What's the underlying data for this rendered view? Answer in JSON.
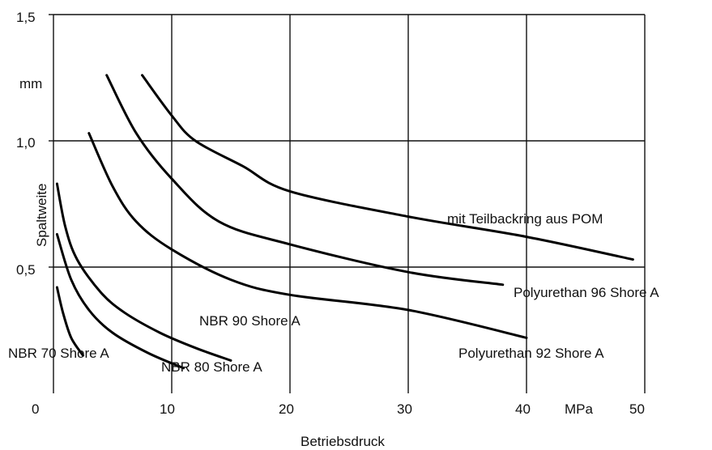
{
  "chart_data": {
    "type": "line",
    "xlabel": "Betriebsdruck",
    "ylabel": "Spaltweite",
    "x_unit": "MPa",
    "y_unit": "mm",
    "xlim": [
      0,
      50
    ],
    "ylim": [
      0,
      1.5
    ],
    "x_ticks": [
      "0",
      "10",
      "20",
      "30",
      "40",
      "50"
    ],
    "y_ticks": [
      "0,5",
      "1,0",
      "1,5"
    ],
    "grid": true,
    "series": [
      {
        "name": "NBR 70 Shore A",
        "x": [
          0.3,
          0.8,
          1.5,
          2.5
        ],
        "y": [
          0.42,
          0.32,
          0.22,
          0.15
        ]
      },
      {
        "name": "NBR 80 Shore A",
        "x": [
          0.3,
          1.5,
          3,
          5,
          8,
          11
        ],
        "y": [
          0.63,
          0.45,
          0.33,
          0.24,
          0.16,
          0.1
        ]
      },
      {
        "name": "NBR 90 Shore A",
        "x": [
          0.3,
          1,
          2,
          4,
          6,
          9,
          12,
          15
        ],
        "y": [
          0.83,
          0.66,
          0.53,
          0.4,
          0.32,
          0.24,
          0.18,
          0.13
        ]
      },
      {
        "name": "Polyurethan 92 Shore A",
        "x": [
          3,
          5,
          7,
          10,
          15,
          20,
          30,
          40
        ],
        "y": [
          1.03,
          0.82,
          0.68,
          0.57,
          0.45,
          0.39,
          0.33,
          0.22
        ]
      },
      {
        "name": "Polyurethan 96 Shore A",
        "x": [
          4.5,
          7,
          10,
          14,
          20,
          30,
          38
        ],
        "y": [
          1.26,
          1.03,
          0.85,
          0.68,
          0.59,
          0.48,
          0.43
        ]
      },
      {
        "name": "mit Teilbackring aus POM",
        "x": [
          7.5,
          10,
          12,
          16,
          20,
          30,
          40,
          49
        ],
        "y": [
          1.26,
          1.1,
          1.0,
          0.9,
          0.8,
          0.7,
          0.62,
          0.53
        ]
      }
    ]
  }
}
